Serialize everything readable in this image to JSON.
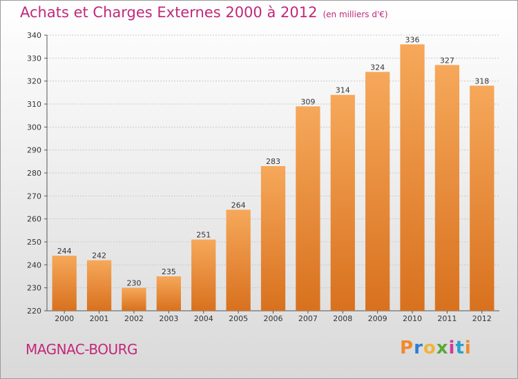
{
  "title": "Achats et Charges Externes 2000 à 2012",
  "unit_label": "(en milliers d'€)",
  "commune": "MAGNAC-BOURG",
  "logo_text": "Proxiti",
  "colors": {
    "accent": "#c0287a",
    "bar_top": "#f6a85a",
    "bar_bottom": "#d8711e",
    "logo_letters": [
      "#f08a2a",
      "#2a7fd0",
      "#f0b43a",
      "#59a93a",
      "#d03a9a",
      "#2aa0d0",
      "#f08a2a"
    ]
  },
  "chart_data": {
    "type": "bar",
    "title": "Achats et Charges Externes 2000 à 2012",
    "xlabel": "",
    "ylabel": "",
    "categories": [
      "2000",
      "2001",
      "2002",
      "2003",
      "2004",
      "2005",
      "2006",
      "2007",
      "2008",
      "2009",
      "2010",
      "2011",
      "2012"
    ],
    "values": [
      244,
      242,
      230,
      235,
      251,
      264,
      283,
      309,
      314,
      324,
      336,
      327,
      318
    ],
    "ylim": [
      220,
      340
    ],
    "yticks": [
      220,
      230,
      240,
      250,
      260,
      270,
      280,
      290,
      300,
      310,
      320,
      330,
      340
    ],
    "grid": true,
    "legend": "none"
  }
}
